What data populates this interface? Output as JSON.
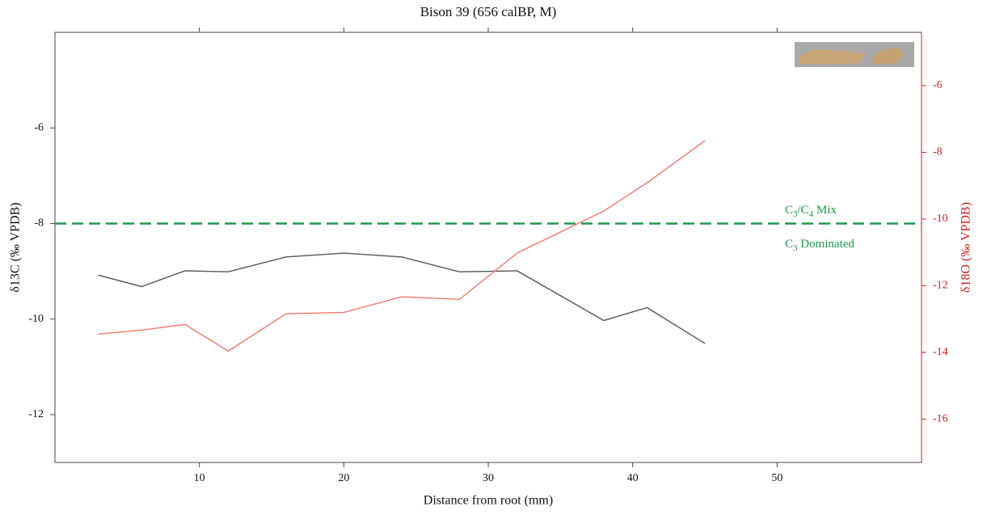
{
  "chart_data": {
    "type": "line",
    "title": "Bison 39 (656 calBP, M)",
    "x_label": "Distance from root (mm)",
    "y_label": "δ13C (‰ VPDB)",
    "y2_label": "δ18O (‰ VPDB)",
    "x": [
      3,
      6,
      9,
      12,
      16,
      20,
      24,
      28,
      32,
      38,
      41,
      45
    ],
    "series": [
      {
        "color": "#555555",
        "values": [
          -9.08,
          -9.32,
          -8.99,
          -9.01,
          -8.7,
          -8.62,
          -8.7,
          -9.01,
          -8.99,
          -10.03,
          -9.76,
          -10.51
        ]
      },
      {
        "color": "#f07a6e",
        "axis": "y2",
        "values": [
          -13.45,
          -13.33,
          -13.16,
          -13.96,
          -12.84,
          -12.8,
          -12.33,
          -12.41,
          -11.02,
          -9.76,
          -8.91,
          -7.65
        ]
      }
    ],
    "xlim": [
      0,
      60
    ],
    "xticks": [
      10,
      20,
      30,
      40,
      50
    ],
    "ylim": [
      -13,
      -4
    ],
    "yticks": [
      -12,
      -10,
      -8,
      -6
    ],
    "y2lim": [
      -17.3,
      -4.4
    ],
    "y2ticks": [
      -16,
      -14,
      -12,
      -10,
      -8,
      -6
    ],
    "y2_color": "#cc1f1f",
    "reference_line": {
      "y": -8,
      "color": "#1f9a4f"
    },
    "annotations": [
      {
        "parts": [
          "C",
          "3",
          "/C",
          "4",
          " Mix"
        ]
      },
      {
        "parts": [
          "C",
          "3",
          " Dominated"
        ]
      }
    ]
  }
}
